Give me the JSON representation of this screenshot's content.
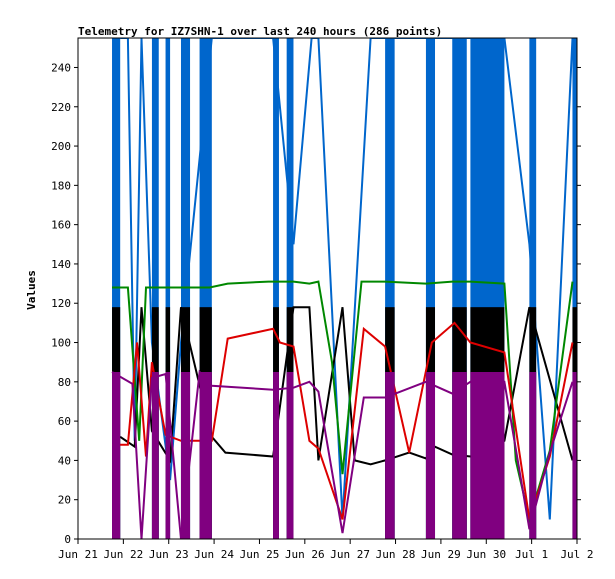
{
  "chart_data": {
    "type": "line",
    "title": "Telemetry for IZ7SHN-1 over last 240 hours (286 points)",
    "ylabel": "Values",
    "xlabel": "",
    "ylim": [
      0,
      255
    ],
    "yticks": [
      0,
      20,
      40,
      60,
      80,
      100,
      120,
      140,
      160,
      180,
      200,
      220,
      240
    ],
    "xlim": [
      0,
      11
    ],
    "xticks": [
      {
        "x": 0,
        "label": "Jun 21"
      },
      {
        "x": 1,
        "label": "Jun 22"
      },
      {
        "x": 2,
        "label": "Jun 23"
      },
      {
        "x": 3,
        "label": "Jun 24"
      },
      {
        "x": 4,
        "label": "Jun 25"
      },
      {
        "x": 5,
        "label": "Jun 26"
      },
      {
        "x": 6,
        "label": "Jun 27"
      },
      {
        "x": 7,
        "label": "Jun 28"
      },
      {
        "x": 8,
        "label": "Jun 29"
      },
      {
        "x": 9,
        "label": "Jun 30"
      },
      {
        "x": 10,
        "label": "Jul 1"
      },
      {
        "x": 11,
        "label": "Jul 2"
      }
    ],
    "grid": false,
    "series": [
      {
        "color": "#0066cc",
        "type": "oscillating",
        "high": 255,
        "low": 0,
        "bands": [
          [
            0.75,
            0.93
          ],
          [
            1.63,
            1.78
          ],
          [
            1.93,
            2.03
          ],
          [
            2.27,
            2.47
          ],
          [
            2.68,
            2.95
          ],
          [
            4.3,
            4.43
          ],
          [
            4.6,
            4.75
          ],
          [
            6.77,
            6.98
          ],
          [
            7.67,
            7.87
          ],
          [
            8.25,
            8.57
          ],
          [
            8.65,
            9.4
          ],
          [
            9.95,
            10.1
          ],
          [
            10.9,
            11.0
          ]
        ],
        "points": [
          [
            0.93,
            255
          ],
          [
            1.1,
            255
          ],
          [
            1.25,
            50
          ],
          [
            1.4,
            255
          ],
          [
            1.63,
            100
          ],
          [
            2.03,
            30
          ],
          [
            2.27,
            100
          ],
          [
            2.95,
            255
          ],
          [
            4.1,
            255
          ],
          [
            4.3,
            255
          ],
          [
            4.75,
            150
          ],
          [
            5.15,
            255
          ],
          [
            5.3,
            255
          ],
          [
            5.83,
            10
          ],
          [
            6.45,
            255
          ],
          [
            6.77,
            255
          ],
          [
            7.87,
            255
          ],
          [
            8.25,
            255
          ],
          [
            9.4,
            255
          ],
          [
            9.95,
            150
          ],
          [
            10.4,
            10
          ],
          [
            10.9,
            255
          ]
        ]
      },
      {
        "color": "#000000",
        "type": "oscillating",
        "high": 118,
        "low": 0,
        "bands": [
          [
            0.75,
            0.93
          ],
          [
            1.63,
            1.78
          ],
          [
            1.93,
            2.03
          ],
          [
            2.27,
            2.47
          ],
          [
            2.68,
            2.95
          ],
          [
            4.3,
            4.43
          ],
          [
            4.6,
            4.75
          ],
          [
            6.77,
            6.98
          ],
          [
            7.67,
            7.87
          ],
          [
            8.25,
            8.57
          ],
          [
            8.65,
            9.4
          ],
          [
            9.95,
            10.1
          ],
          [
            10.9,
            11.0
          ]
        ],
        "points": [
          [
            0.93,
            52
          ],
          [
            1.25,
            47
          ],
          [
            1.4,
            118
          ],
          [
            1.63,
            55
          ],
          [
            2.03,
            40
          ],
          [
            2.27,
            118
          ],
          [
            2.95,
            52
          ],
          [
            3.25,
            44
          ],
          [
            4.3,
            42
          ],
          [
            4.75,
            118
          ],
          [
            5.1,
            118
          ],
          [
            5.3,
            40
          ],
          [
            5.83,
            118
          ],
          [
            6.1,
            40
          ],
          [
            6.45,
            38
          ],
          [
            6.77,
            40
          ],
          [
            7.3,
            44
          ],
          [
            7.67,
            41
          ],
          [
            7.87,
            47
          ],
          [
            8.25,
            43
          ],
          [
            8.65,
            42
          ],
          [
            9.4,
            50
          ],
          [
            9.95,
            118
          ],
          [
            10.9,
            40
          ]
        ]
      },
      {
        "color": "#008800",
        "type": "line",
        "points": [
          [
            0.75,
            128
          ],
          [
            1.1,
            128
          ],
          [
            1.35,
            50
          ],
          [
            1.5,
            128
          ],
          [
            1.63,
            128
          ],
          [
            1.93,
            128
          ],
          [
            2.27,
            128
          ],
          [
            2.68,
            128
          ],
          [
            2.9,
            128
          ],
          [
            3.3,
            130
          ],
          [
            4.2,
            131
          ],
          [
            4.75,
            131
          ],
          [
            5.1,
            130
          ],
          [
            5.3,
            131
          ],
          [
            5.6,
            90
          ],
          [
            5.83,
            33
          ],
          [
            6.25,
            131
          ],
          [
            6.77,
            131
          ],
          [
            7.67,
            130
          ],
          [
            8.25,
            131
          ],
          [
            8.65,
            131
          ],
          [
            9.4,
            130
          ],
          [
            9.65,
            40
          ],
          [
            9.95,
            10
          ],
          [
            10.4,
            45
          ],
          [
            10.9,
            131
          ]
        ]
      },
      {
        "color": "#dd0000",
        "type": "line",
        "points": [
          [
            0.75,
            48
          ],
          [
            1.1,
            48
          ],
          [
            1.3,
            100
          ],
          [
            1.5,
            42
          ],
          [
            1.63,
            90
          ],
          [
            1.93,
            53
          ],
          [
            2.27,
            50
          ],
          [
            2.68,
            50
          ],
          [
            2.95,
            50
          ],
          [
            3.3,
            102
          ],
          [
            4.3,
            107
          ],
          [
            4.45,
            100
          ],
          [
            4.75,
            98
          ],
          [
            5.1,
            50
          ],
          [
            5.3,
            46
          ],
          [
            5.83,
            10
          ],
          [
            6.3,
            107
          ],
          [
            6.77,
            98
          ],
          [
            7.3,
            44
          ],
          [
            7.8,
            100
          ],
          [
            8.3,
            110
          ],
          [
            8.65,
            100
          ],
          [
            9.4,
            95
          ],
          [
            9.95,
            10
          ],
          [
            10.4,
            42
          ],
          [
            10.9,
            100
          ]
        ]
      },
      {
        "color": "#800080",
        "type": "oscillating",
        "high": 85,
        "low": 0,
        "bands": [
          [
            0.75,
            0.93
          ],
          [
            1.63,
            1.78
          ],
          [
            1.93,
            2.03
          ],
          [
            2.27,
            2.47
          ],
          [
            2.68,
            2.95
          ],
          [
            4.3,
            4.43
          ],
          [
            4.6,
            4.75
          ],
          [
            6.77,
            6.98
          ],
          [
            7.67,
            7.87
          ],
          [
            8.25,
            8.57
          ],
          [
            8.65,
            9.4
          ],
          [
            9.95,
            10.1
          ],
          [
            10.9,
            11.0
          ]
        ],
        "points": [
          [
            0.75,
            85
          ],
          [
            1.2,
            79
          ],
          [
            1.4,
            0
          ],
          [
            1.63,
            82
          ],
          [
            1.93,
            84
          ],
          [
            2.27,
            0
          ],
          [
            2.68,
            85
          ],
          [
            2.95,
            78
          ],
          [
            4.3,
            76
          ],
          [
            4.75,
            77
          ],
          [
            5.1,
            80
          ],
          [
            5.3,
            75
          ],
          [
            5.83,
            3
          ],
          [
            6.3,
            72
          ],
          [
            6.77,
            72
          ],
          [
            7.67,
            80
          ],
          [
            8.25,
            74
          ],
          [
            8.65,
            80
          ],
          [
            9.4,
            80
          ],
          [
            9.95,
            5
          ],
          [
            10.4,
            44
          ],
          [
            10.9,
            80
          ]
        ]
      }
    ]
  }
}
